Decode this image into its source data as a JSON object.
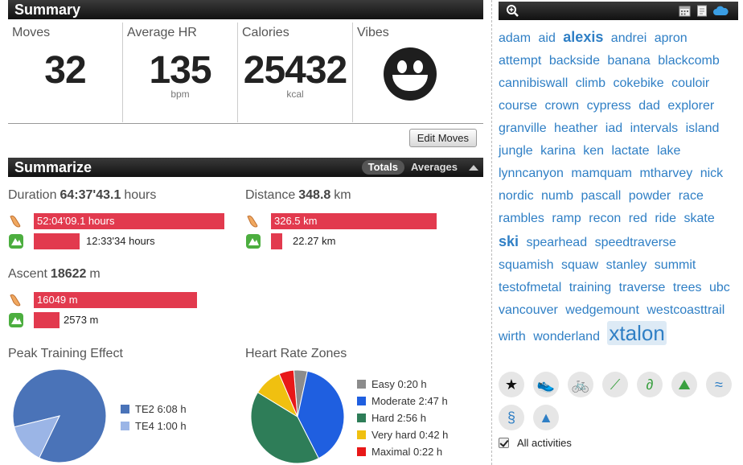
{
  "summary": {
    "title": "Summary",
    "stats": [
      {
        "label": "Moves",
        "value": "32",
        "unit": ""
      },
      {
        "label": "Average HR",
        "value": "135",
        "unit": "bpm"
      },
      {
        "label": "Calories",
        "value": "25432",
        "unit": "kcal"
      },
      {
        "label": "Vibes",
        "value": "",
        "unit": ""
      }
    ],
    "edit_label": "Edit Moves"
  },
  "summarize": {
    "title": "Summarize",
    "tabs": [
      "Totals",
      "Averages"
    ],
    "duration": {
      "label": "Duration",
      "value": "64:37'43.1",
      "unit": "hours",
      "rows": [
        {
          "icon": "running-shoe-icon",
          "text": "52:04'09.1 hours",
          "fraction": 1.0
        },
        {
          "icon": "trail-run-icon",
          "text": "12:33'34 hours",
          "fraction": 0.24
        }
      ]
    },
    "distance": {
      "label": "Distance",
      "value": "348.8",
      "unit": "km",
      "rows": [
        {
          "icon": "running-shoe-icon",
          "text": "326.5 km",
          "fraction": 1.0
        },
        {
          "icon": "trail-run-icon",
          "text": "22.27 km",
          "fraction": 0.068
        }
      ]
    },
    "ascent": {
      "label": "Ascent",
      "value": "18622",
      "unit": "m",
      "rows": [
        {
          "icon": "running-shoe-icon",
          "text": "16049 m",
          "fraction": 1.0
        },
        {
          "icon": "trail-run-icon",
          "text": "2573 m",
          "fraction": 0.16
        }
      ]
    }
  },
  "chart_data": [
    {
      "type": "pie",
      "title": "Peak Training Effect",
      "categories": [
        "TE2 6:08 h",
        "TE4 1:00 h"
      ],
      "values": [
        6.133,
        1.0
      ],
      "colors": [
        "#4a73b8",
        "#9bb5e6"
      ],
      "legend": "right"
    },
    {
      "type": "pie",
      "title": "Heart Rate Zones",
      "categories": [
        "Easy 0:20 h",
        "Moderate 2:47 h",
        "Hard 2:56 h",
        "Very hard 0:42 h",
        "Maximal 0:22 h"
      ],
      "values": [
        0.333,
        2.783,
        2.933,
        0.7,
        0.367
      ],
      "colors": [
        "#8c8c8c",
        "#1f5fe0",
        "#2e7d58",
        "#f0c010",
        "#e81818"
      ],
      "legend": "right"
    }
  ],
  "sidebar": {
    "tags": [
      {
        "t": "adam",
        "s": "n"
      },
      {
        "t": "aid",
        "s": "n"
      },
      {
        "t": "alexis",
        "s": "b"
      },
      {
        "t": "andrei",
        "s": "n"
      },
      {
        "t": "apron",
        "s": "n"
      },
      {
        "t": "attempt",
        "s": "n"
      },
      {
        "t": "backside",
        "s": "n"
      },
      {
        "t": "banana",
        "s": "n"
      },
      {
        "t": "blackcomb",
        "s": "n"
      },
      {
        "t": "cannibiswall",
        "s": "n"
      },
      {
        "t": "climb",
        "s": "n"
      },
      {
        "t": "cokebike",
        "s": "n"
      },
      {
        "t": "couloir",
        "s": "n"
      },
      {
        "t": "course",
        "s": "n"
      },
      {
        "t": "crown",
        "s": "n"
      },
      {
        "t": "cypress",
        "s": "n"
      },
      {
        "t": "dad",
        "s": "n"
      },
      {
        "t": "explorer",
        "s": "n"
      },
      {
        "t": "granville",
        "s": "n"
      },
      {
        "t": "heather",
        "s": "n"
      },
      {
        "t": "iad",
        "s": "n"
      },
      {
        "t": "intervals",
        "s": "n"
      },
      {
        "t": "island",
        "s": "n"
      },
      {
        "t": "jungle",
        "s": "n"
      },
      {
        "t": "karina",
        "s": "n"
      },
      {
        "t": "ken",
        "s": "n"
      },
      {
        "t": "lactate",
        "s": "n"
      },
      {
        "t": "lake",
        "s": "n"
      },
      {
        "t": "lynncanyon",
        "s": "n"
      },
      {
        "t": "mamquam",
        "s": "n"
      },
      {
        "t": "mtharvey",
        "s": "n"
      },
      {
        "t": "nick",
        "s": "n"
      },
      {
        "t": "nordic",
        "s": "n"
      },
      {
        "t": "numb",
        "s": "n"
      },
      {
        "t": "pascall",
        "s": "n"
      },
      {
        "t": "powder",
        "s": "n"
      },
      {
        "t": "race",
        "s": "n"
      },
      {
        "t": "rambles",
        "s": "n"
      },
      {
        "t": "ramp",
        "s": "n"
      },
      {
        "t": "recon",
        "s": "n"
      },
      {
        "t": "red",
        "s": "n"
      },
      {
        "t": "ride",
        "s": "n"
      },
      {
        "t": "skate",
        "s": "n"
      },
      {
        "t": "ski",
        "s": "b"
      },
      {
        "t": "spearhead",
        "s": "n"
      },
      {
        "t": "speedtraverse",
        "s": "n"
      },
      {
        "t": "squamish",
        "s": "n"
      },
      {
        "t": "squaw",
        "s": "n"
      },
      {
        "t": "stanley",
        "s": "n"
      },
      {
        "t": "summit",
        "s": "n"
      },
      {
        "t": "testofmetal",
        "s": "n"
      },
      {
        "t": "training",
        "s": "n"
      },
      {
        "t": "traverse",
        "s": "n"
      },
      {
        "t": "trees",
        "s": "n"
      },
      {
        "t": "ubc",
        "s": "n"
      },
      {
        "t": "vancouver",
        "s": "n"
      },
      {
        "t": "wedgemount",
        "s": "n"
      },
      {
        "t": "westcoasttrail",
        "s": "n"
      },
      {
        "t": "wirth",
        "s": "n"
      },
      {
        "t": "wonderland",
        "s": "n"
      },
      {
        "t": "xtalon",
        "s": "h"
      }
    ],
    "activity_icons": [
      {
        "name": "all-activities-star-icon",
        "glyph": "★",
        "color": "#111"
      },
      {
        "name": "running-shoe-icon",
        "glyph": "👟",
        "color": "#e08a2a"
      },
      {
        "name": "cycling-icon",
        "glyph": "🚲",
        "color": "#e08a2a"
      },
      {
        "name": "nordic-ski-icon",
        "glyph": "⟋",
        "color": "#3aa040"
      },
      {
        "name": "climbing-icon",
        "glyph": "∂",
        "color": "#3aa040"
      },
      {
        "name": "trail-run-icon",
        "glyph": "⛰",
        "color": "#3aa040"
      },
      {
        "name": "skate-ski-icon",
        "glyph": "≈",
        "color": "#2f7fc5"
      },
      {
        "name": "skiing-icon",
        "glyph": "§",
        "color": "#2f7fc5"
      },
      {
        "name": "mountaineering-icon",
        "glyph": "▲",
        "color": "#2f7fc5"
      }
    ],
    "all_activities_label": "All activities"
  }
}
